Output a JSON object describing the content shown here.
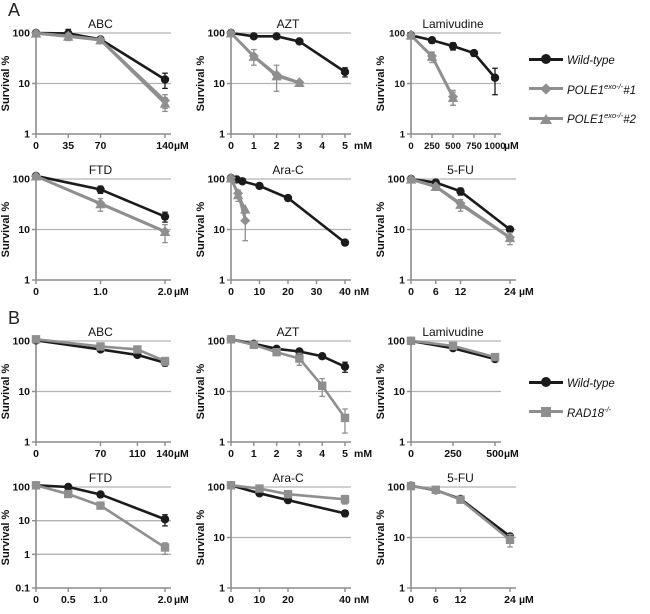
{
  "panels": {
    "a": {
      "label": "A"
    },
    "b": {
      "label": "B"
    }
  },
  "colors": {
    "black": "#1b1b1b",
    "gray": "#8f8f8f",
    "grid": "#b3b3b3",
    "axis": "#8c8c8c"
  },
  "legend_a": {
    "items": [
      {
        "label_main": "Wild-type",
        "label_sup": "",
        "label_suffix": "",
        "marker": "circle-black"
      },
      {
        "label_main": "POLE1",
        "label_sup": "exo-/-",
        "label_suffix": "#1",
        "marker": "diamond-gray"
      },
      {
        "label_main": "POLE1",
        "label_sup": "exo-/-",
        "label_suffix": "#2",
        "marker": "triangle-gray"
      }
    ]
  },
  "legend_b": {
    "items": [
      {
        "label_main": "Wild-type",
        "label_sup": "",
        "label_suffix": "",
        "marker": "circle-black"
      },
      {
        "label_main": "RAD18",
        "label_sup": "-/-",
        "label_suffix": "",
        "marker": "square-gray"
      }
    ]
  },
  "chart_data": [
    {
      "id": "a-abc",
      "panel": "A",
      "type": "line",
      "title": "ABC",
      "ylabel": "Survival %",
      "yscale": "log",
      "ylim": [
        1,
        100
      ],
      "yticks": [
        1,
        10,
        100
      ],
      "grid": true,
      "x_unit": "µM",
      "xmax": 140,
      "xticks": [
        0,
        35,
        70,
        140
      ],
      "xtick_labels": [
        "0",
        "35",
        "70",
        "140"
      ],
      "series": [
        {
          "name": "Wild-type",
          "marker": "circle",
          "color": "#1b1b1b",
          "x": [
            0,
            35,
            70,
            140
          ],
          "y": [
            100,
            98,
            75,
            12
          ],
          "err": [
            0,
            20,
            0,
            4
          ]
        },
        {
          "name": "POLE1exo-/-#2",
          "marker": "triangle",
          "color": "#8f8f8f",
          "x": [
            0,
            35,
            70,
            140
          ],
          "y": [
            98,
            85,
            72,
            4
          ],
          "err": [
            0,
            14,
            0,
            1.2
          ]
        },
        {
          "name": "POLE1exo-/-#1",
          "marker": "diamond",
          "color": "#8f8f8f",
          "x": [
            0,
            35,
            70,
            140
          ],
          "y": [
            100,
            88,
            74,
            4.6
          ],
          "err": [
            0,
            0,
            0,
            1.4
          ]
        }
      ]
    },
    {
      "id": "a-azt",
      "panel": "A",
      "type": "line",
      "title": "AZT",
      "ylabel": "Survival %",
      "yscale": "log",
      "ylim": [
        1,
        100
      ],
      "yticks": [
        1,
        10,
        100
      ],
      "grid": true,
      "x_unit": "mM",
      "xmax": 5,
      "xticks": [
        0,
        1,
        2,
        3,
        4,
        5
      ],
      "xtick_labels": [
        "0",
        "1",
        "2",
        "3",
        "4",
        "5"
      ],
      "series": [
        {
          "name": "Wild-type",
          "marker": "circle",
          "color": "#1b1b1b",
          "x": [
            0,
            1,
            2,
            3,
            5
          ],
          "y": [
            100,
            86,
            86,
            68,
            17
          ],
          "err": [
            0,
            0,
            0,
            0,
            3.5
          ]
        },
        {
          "name": "POLE1exo-/-#2",
          "marker": "triangle",
          "color": "#8f8f8f",
          "x": [
            0,
            1,
            2,
            3
          ],
          "y": [
            99,
            34,
            14,
            10.3
          ],
          "err": [
            0,
            0,
            0,
            0
          ]
        },
        {
          "name": "POLE1exo-/-#1",
          "marker": "diamond",
          "color": "#8f8f8f",
          "x": [
            0,
            1,
            2,
            3
          ],
          "y": [
            100,
            35,
            15,
            10.5
          ],
          "err": [
            0,
            12,
            8,
            0
          ]
        }
      ]
    },
    {
      "id": "a-lamivudine",
      "panel": "A",
      "type": "line",
      "title": "Lamivudine",
      "ylabel": "Survival %",
      "yscale": "log",
      "ylim": [
        1,
        100
      ],
      "yticks": [
        1,
        10,
        100
      ],
      "grid": true,
      "tick_font": 9.5,
      "x_unit": "µM",
      "xmax": 1000,
      "xticks": [
        0,
        250,
        500,
        750,
        1000
      ],
      "xtick_labels": [
        "0",
        "250",
        "500",
        "750",
        "1000"
      ],
      "series": [
        {
          "name": "Wild-type",
          "marker": "circle",
          "color": "#1b1b1b",
          "x": [
            0,
            250,
            500,
            750,
            1000
          ],
          "y": [
            90,
            72,
            55,
            40,
            13
          ],
          "err": [
            0,
            9,
            9,
            5,
            7
          ]
        },
        {
          "name": "POLE1exo-/-#2",
          "marker": "triangle",
          "color": "#8f8f8f",
          "x": [
            0,
            250,
            500
          ],
          "y": [
            89,
            34,
            5.2
          ],
          "err": [
            0,
            8,
            1.5
          ]
        },
        {
          "name": "POLE1exo-/-#1",
          "marker": "diamond",
          "color": "#8f8f8f",
          "x": [
            0,
            250,
            500
          ],
          "y": [
            90,
            35,
            5.5
          ],
          "err": [
            0,
            6,
            1.8
          ]
        }
      ]
    },
    {
      "id": "a-ftd",
      "panel": "A",
      "type": "line",
      "title": "FTD",
      "ylabel": "Survival %",
      "yscale": "log",
      "ylim": [
        1,
        100
      ],
      "yticks": [
        1,
        10,
        100
      ],
      "grid": true,
      "x_unit": "µM",
      "xmax": 2,
      "xticks": [
        0,
        1,
        2
      ],
      "xtick_labels": [
        "0",
        "1.0",
        "2.0"
      ],
      "series": [
        {
          "name": "Wild-type",
          "marker": "circle",
          "color": "#1b1b1b",
          "x": [
            0,
            1,
            2
          ],
          "y": [
            115,
            62,
            18
          ],
          "err": [
            0,
            10,
            4
          ]
        },
        {
          "name": "POLE1exo-/-#2",
          "marker": "triangle",
          "color": "#8f8f8f",
          "x": [
            0,
            1,
            2
          ],
          "y": [
            113,
            32,
            9
          ],
          "err": [
            0,
            9,
            3.5
          ]
        },
        {
          "name": "POLE1exo-/-#1",
          "marker": "diamond",
          "color": "#8f8f8f",
          "x": [
            0,
            1,
            2
          ],
          "y": [
            114,
            33,
            9.2
          ],
          "err": [
            0,
            0,
            0
          ]
        }
      ]
    },
    {
      "id": "a-arac",
      "panel": "A",
      "type": "line",
      "title": "Ara-C",
      "ylabel": "Survival %",
      "yscale": "log",
      "ylim": [
        1,
        100
      ],
      "yticks": [
        1,
        10,
        100
      ],
      "grid": true,
      "x_unit": "nM",
      "xmax": 40,
      "xticks": [
        0,
        10,
        20,
        30,
        40
      ],
      "xtick_labels": [
        "0",
        "10",
        "20",
        "30",
        "40"
      ],
      "series": [
        {
          "name": "Wild-type",
          "marker": "circle",
          "color": "#1b1b1b",
          "x": [
            0,
            2,
            4,
            10,
            20,
            40
          ],
          "y": [
            105,
            98,
            90,
            73,
            42,
            5.5
          ],
          "err": [
            0,
            0,
            0,
            0,
            5,
            0
          ]
        },
        {
          "name": "POLE1exo-/-#2",
          "marker": "triangle",
          "color": "#8f8f8f",
          "x": [
            0,
            2.5,
            5
          ],
          "y": [
            103,
            48,
            25
          ],
          "err": [
            0,
            12,
            0
          ]
        },
        {
          "name": "POLE1exo-/-#1",
          "marker": "diamond",
          "color": "#8f8f8f",
          "x": [
            0,
            2.5,
            5
          ],
          "y": [
            105,
            52,
            15
          ],
          "err": [
            0,
            0,
            9
          ]
        }
      ]
    },
    {
      "id": "a-5fu",
      "panel": "A",
      "type": "line",
      "title": "5-FU",
      "ylabel": "Survival %",
      "yscale": "log",
      "ylim": [
        1,
        100
      ],
      "yticks": [
        1,
        10,
        100
      ],
      "grid": true,
      "x_unit": "µM",
      "xmax": 24,
      "xticks": [
        0,
        6,
        12,
        24
      ],
      "xtick_labels": [
        "0",
        "6",
        "12",
        "24"
      ],
      "series": [
        {
          "name": "Wild-type",
          "marker": "circle",
          "color": "#1b1b1b",
          "x": [
            0,
            6,
            12,
            24
          ],
          "y": [
            100,
            85,
            57,
            10
          ],
          "err": [
            0,
            5,
            9,
            0
          ]
        },
        {
          "name": "POLE1exo-/-#2",
          "marker": "triangle",
          "color": "#8f8f8f",
          "x": [
            0,
            6,
            12,
            24
          ],
          "y": [
            98,
            70,
            31,
            6.8
          ],
          "err": [
            0,
            4,
            8,
            1.8
          ]
        },
        {
          "name": "POLE1exo-/-#1",
          "marker": "diamond",
          "color": "#8f8f8f",
          "x": [
            0,
            6,
            12,
            24
          ],
          "y": [
            100,
            72,
            33,
            7
          ],
          "err": [
            0,
            0,
            0,
            0
          ]
        }
      ]
    },
    {
      "id": "b-abc",
      "panel": "B",
      "type": "line",
      "title": "ABC",
      "ylabel": "Survival %",
      "yscale": "log",
      "ylim": [
        1,
        100
      ],
      "yticks": [
        1,
        10,
        100
      ],
      "grid": true,
      "x_unit": "µM",
      "xmax": 140,
      "xticks": [
        0,
        70,
        110,
        140
      ],
      "xtick_labels": [
        "0",
        "70",
        "110",
        "140"
      ],
      "series": [
        {
          "name": "Wild-type",
          "marker": "circle",
          "color": "#1b1b1b",
          "x": [
            0,
            70,
            110,
            140
          ],
          "y": [
            103,
            68,
            53,
            37
          ],
          "err": [
            0,
            0,
            4,
            5
          ]
        },
        {
          "name": "RAD18-/-",
          "marker": "square",
          "color": "#8f8f8f",
          "x": [
            0,
            70,
            110,
            140
          ],
          "y": [
            108,
            78,
            68,
            40
          ],
          "err": [
            0,
            0,
            0,
            7
          ]
        }
      ]
    },
    {
      "id": "b-azt",
      "panel": "B",
      "type": "line",
      "title": "AZT",
      "ylabel": "Survival %",
      "yscale": "log",
      "ylim": [
        1,
        100
      ],
      "yticks": [
        1,
        10,
        100
      ],
      "grid": true,
      "x_unit": "mM",
      "xmax": 5,
      "xticks": [
        0,
        1,
        2,
        3,
        4,
        5
      ],
      "xtick_labels": [
        "0",
        "1",
        "2",
        "3",
        "4",
        "5"
      ],
      "series": [
        {
          "name": "Wild-type",
          "marker": "circle",
          "color": "#1b1b1b",
          "x": [
            0,
            1,
            2,
            3,
            4,
            5
          ],
          "y": [
            108,
            88,
            70,
            62,
            50,
            31
          ],
          "err": [
            0,
            0,
            0,
            0,
            4,
            7
          ]
        },
        {
          "name": "RAD18-/-",
          "marker": "square",
          "color": "#8f8f8f",
          "x": [
            0,
            1,
            2,
            3,
            4,
            5
          ],
          "y": [
            108,
            84,
            60,
            45,
            13,
            3
          ],
          "err": [
            0,
            0,
            0,
            12,
            5,
            1.5
          ]
        }
      ]
    },
    {
      "id": "b-lamivudine",
      "panel": "B",
      "type": "line",
      "title": "Lamivudine",
      "ylabel": "Survival %",
      "yscale": "log",
      "ylim": [
        1,
        100
      ],
      "yticks": [
        1,
        10,
        100
      ],
      "grid": true,
      "x_unit": "µM",
      "xmax": 500,
      "xticks": [
        0,
        250,
        500
      ],
      "xtick_labels": [
        "0",
        "250",
        "500"
      ],
      "series": [
        {
          "name": "Wild-type",
          "marker": "circle",
          "color": "#1b1b1b",
          "x": [
            0,
            250,
            500
          ],
          "y": [
            100,
            72,
            44
          ],
          "err": [
            0,
            4,
            5
          ]
        },
        {
          "name": "RAD18-/-",
          "marker": "square",
          "color": "#8f8f8f",
          "x": [
            0,
            250,
            500
          ],
          "y": [
            101,
            80,
            48
          ],
          "err": [
            0,
            4,
            6
          ]
        }
      ]
    },
    {
      "id": "b-ftd",
      "panel": "B",
      "type": "line",
      "title": "FTD",
      "ylabel": "Survival %",
      "yscale": "log",
      "ylim": [
        0.1,
        100
      ],
      "yticks": [
        0.1,
        1,
        10,
        100
      ],
      "grid": true,
      "x_unit": "µM",
      "xmax": 2,
      "xticks": [
        0,
        0.5,
        1,
        2
      ],
      "xtick_labels": [
        "0",
        "0.5",
        "1.0",
        "2.0"
      ],
      "series": [
        {
          "name": "Wild-type",
          "marker": "circle",
          "color": "#1b1b1b",
          "x": [
            0,
            0.5,
            1,
            2
          ],
          "y": [
            112,
            100,
            60,
            11
          ],
          "err": [
            0,
            0,
            8,
            4
          ]
        },
        {
          "name": "RAD18-/-",
          "marker": "square",
          "color": "#8f8f8f",
          "x": [
            0,
            0.5,
            1,
            2
          ],
          "y": [
            112,
            62,
            28,
            1.6
          ],
          "err": [
            0,
            8,
            5,
            0.6
          ]
        }
      ]
    },
    {
      "id": "b-arac",
      "panel": "B",
      "type": "line",
      "title": "Ara-C",
      "ylabel": "Survival %",
      "yscale": "log",
      "ylim": [
        1,
        100
      ],
      "yticks": [
        1,
        10,
        100
      ],
      "grid": true,
      "x_unit": "nM",
      "xmax": 40,
      "xticks": [
        0,
        10,
        20,
        40
      ],
      "xtick_labels": [
        "0",
        "10",
        "20",
        "40"
      ],
      "series": [
        {
          "name": "Wild-type",
          "marker": "circle",
          "color": "#1b1b1b",
          "x": [
            0,
            10,
            20,
            40
          ],
          "y": [
            108,
            75,
            55,
            30
          ],
          "err": [
            0,
            0,
            0,
            4
          ]
        },
        {
          "name": "RAD18-/-",
          "marker": "square",
          "color": "#8f8f8f",
          "x": [
            0,
            10,
            20,
            40
          ],
          "y": [
            108,
            93,
            72,
            57
          ],
          "err": [
            0,
            0,
            0,
            11
          ]
        }
      ]
    },
    {
      "id": "b-5fu",
      "panel": "B",
      "type": "line",
      "title": "5-FU",
      "ylabel": "Survival %",
      "yscale": "log",
      "ylim": [
        1,
        100
      ],
      "yticks": [
        1,
        10,
        100
      ],
      "grid": true,
      "x_unit": "µM",
      "xmax": 24,
      "xticks": [
        0,
        6,
        12,
        24
      ],
      "xtick_labels": [
        "0",
        "6",
        "12",
        "24"
      ],
      "series": [
        {
          "name": "Wild-type",
          "marker": "circle",
          "color": "#1b1b1b",
          "x": [
            0,
            6,
            12,
            24
          ],
          "y": [
            106,
            86,
            58,
            10.5
          ],
          "err": [
            0,
            0,
            0,
            1.5
          ]
        },
        {
          "name": "RAD18-/-",
          "marker": "square",
          "color": "#8f8f8f",
          "x": [
            0,
            6,
            12,
            24
          ],
          "y": [
            104,
            88,
            56,
            9
          ],
          "err": [
            0,
            0,
            0,
            2.5
          ]
        }
      ]
    }
  ]
}
